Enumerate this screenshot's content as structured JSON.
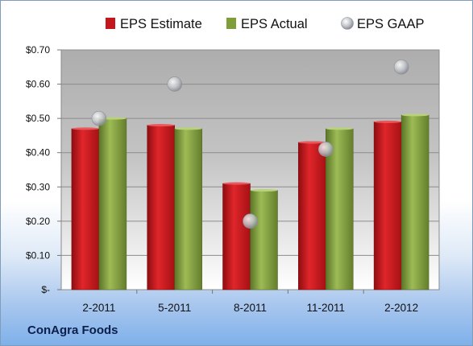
{
  "company": "ConAgra Foods",
  "colors": {
    "estimate": "#c3171c",
    "actual": "#7f9e3a",
    "gaap": "#b5b8bd"
  },
  "chart_data": {
    "type": "bar",
    "categories": [
      "2-2011",
      "5-2011",
      "8-2011",
      "11-2011",
      "2-2012"
    ],
    "series": [
      {
        "name": "EPS Estimate",
        "kind": "bar",
        "values": [
          0.47,
          0.48,
          0.31,
          0.43,
          0.49
        ]
      },
      {
        "name": "EPS Actual",
        "kind": "bar",
        "values": [
          0.5,
          0.47,
          0.29,
          0.47,
          0.51
        ]
      },
      {
        "name": "EPS GAAP",
        "kind": "scatter",
        "values": [
          0.5,
          0.6,
          0.2,
          0.41,
          0.65
        ]
      }
    ],
    "y_ticks": [
      0,
      0.1,
      0.2,
      0.3,
      0.4,
      0.5,
      0.6,
      0.7
    ],
    "y_tick_labels": [
      "$-",
      "$0.10",
      "$0.20",
      "$0.30",
      "$0.40",
      "$0.50",
      "$0.60",
      "$0.70"
    ],
    "ylim": [
      0,
      0.7
    ],
    "grid": true,
    "legend_position": "top"
  }
}
